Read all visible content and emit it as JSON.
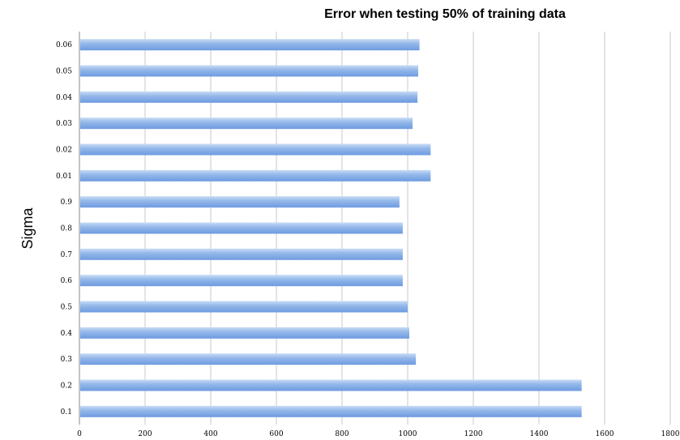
{
  "chart_data": {
    "type": "bar",
    "orientation": "horizontal",
    "title": "Error when testing 50% of training data",
    "xlabel": "",
    "ylabel": "Sigma",
    "xlim": [
      0,
      1800
    ],
    "x_ticks": [
      0,
      200,
      400,
      600,
      800,
      1000,
      1200,
      1400,
      1600,
      1800
    ],
    "grid": true,
    "legend": "none",
    "bar_color": "#8fb4e8",
    "categories": [
      "0.1",
      "0.2",
      "0.3",
      "0.4",
      "0.5",
      "0.6",
      "0.7",
      "0.8",
      "0.9",
      "0.01",
      "0.02",
      "0.03",
      "0.04",
      "0.05",
      "0.06"
    ],
    "values": [
      1530,
      1530,
      1025,
      1005,
      1000,
      985,
      985,
      985,
      975,
      1070,
      1070,
      1015,
      1030,
      1032,
      1036
    ]
  }
}
